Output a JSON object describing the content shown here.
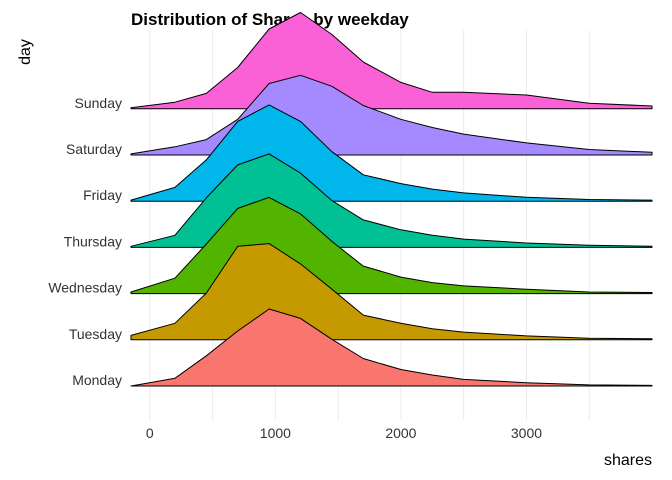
{
  "chart_data": {
    "type": "area",
    "subtype": "ridgeline",
    "title": "Distribution of Shares by weekday",
    "xlabel": "shares",
    "ylabel": "day",
    "xlim": [
      -150,
      4000
    ],
    "x_ticks": [
      0,
      1000,
      2000,
      3000
    ],
    "x_tick_labels": [
      "0",
      "1000",
      "2000",
      "3000"
    ],
    "grid": true,
    "legend": "none",
    "x": [
      -150,
      200,
      450,
      700,
      950,
      1200,
      1450,
      1700,
      2000,
      2250,
      2500,
      3000,
      3500,
      4000
    ],
    "series": [
      {
        "name": "Monday",
        "color": "#F8766D",
        "values": [
          0.0,
          0.14,
          0.55,
          1.0,
          1.4,
          1.23,
          0.85,
          0.5,
          0.3,
          0.2,
          0.12,
          0.06,
          0.02,
          0.01
        ]
      },
      {
        "name": "Tuesday",
        "color": "#C49A00",
        "values": [
          0.08,
          0.3,
          0.85,
          1.7,
          1.75,
          1.38,
          0.92,
          0.45,
          0.3,
          0.2,
          0.14,
          0.07,
          0.03,
          0.02
        ]
      },
      {
        "name": "Wednesday",
        "color": "#53B400",
        "values": [
          0.03,
          0.28,
          0.9,
          1.55,
          1.75,
          1.45,
          0.95,
          0.5,
          0.3,
          0.2,
          0.14,
          0.08,
          0.03,
          0.02
        ]
      },
      {
        "name": "Thursday",
        "color": "#00C094",
        "values": [
          0.02,
          0.22,
          0.9,
          1.5,
          1.7,
          1.35,
          0.85,
          0.5,
          0.32,
          0.22,
          0.15,
          0.08,
          0.04,
          0.02
        ]
      },
      {
        "name": "Friday",
        "color": "#00B6EB",
        "values": [
          0.02,
          0.25,
          0.75,
          1.45,
          1.75,
          1.45,
          0.9,
          0.48,
          0.32,
          0.22,
          0.15,
          0.07,
          0.03,
          0.02
        ]
      },
      {
        "name": "Saturday",
        "color": "#A58AFF",
        "values": [
          0.02,
          0.15,
          0.28,
          0.65,
          1.3,
          1.45,
          1.25,
          0.9,
          0.65,
          0.5,
          0.38,
          0.22,
          0.1,
          0.05
        ]
      },
      {
        "name": "Sunday",
        "color": "#FB61D7",
        "values": [
          0.02,
          0.12,
          0.28,
          0.75,
          1.45,
          1.75,
          1.35,
          0.85,
          0.48,
          0.3,
          0.3,
          0.25,
          0.1,
          0.05
        ]
      }
    ]
  }
}
